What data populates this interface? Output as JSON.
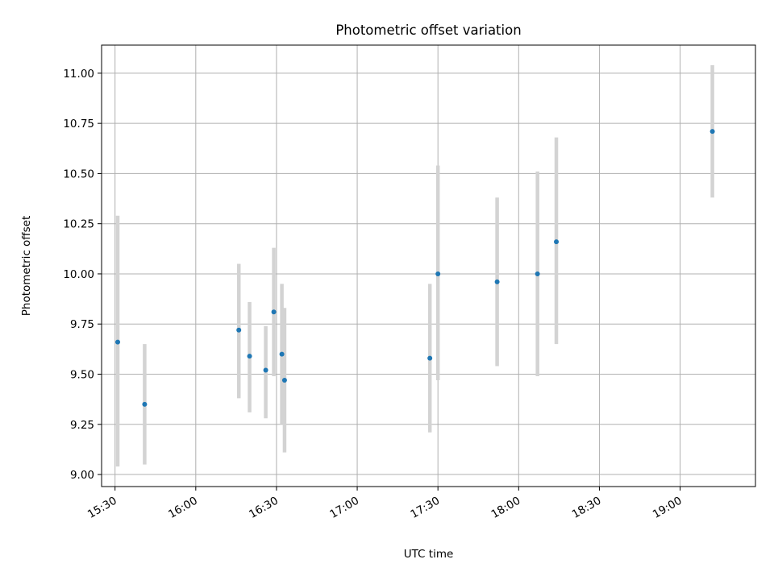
{
  "chart_data": {
    "type": "scatter",
    "title": "Photometric offset variation",
    "xlabel": "UTC time",
    "ylabel": "Photometric offset",
    "x_ticks": [
      "15:30",
      "16:00",
      "16:30",
      "17:00",
      "17:30",
      "18:00",
      "18:30",
      "19:00"
    ],
    "y_ticks": [
      "9.00",
      "9.25",
      "9.50",
      "9.75",
      "10.00",
      "10.25",
      "10.50",
      "10.75",
      "11.00"
    ],
    "xlim": [
      "15:25",
      "19:28"
    ],
    "ylim": [
      8.94,
      11.14
    ],
    "grid": true,
    "colors": {
      "point": "#1f77b4",
      "errorbar": "#d3d3d3",
      "grid": "#b0b0b0"
    },
    "points": [
      {
        "x": "15:31",
        "y": 9.66,
        "ylow": 9.04,
        "yhigh": 10.29
      },
      {
        "x": "15:41",
        "y": 9.35,
        "ylow": 9.05,
        "yhigh": 9.65
      },
      {
        "x": "16:16",
        "y": 9.72,
        "ylow": 9.38,
        "yhigh": 10.05
      },
      {
        "x": "16:20",
        "y": 9.59,
        "ylow": 9.31,
        "yhigh": 9.86
      },
      {
        "x": "16:26",
        "y": 9.52,
        "ylow": 9.28,
        "yhigh": 9.74
      },
      {
        "x": "16:29",
        "y": 9.81,
        "ylow": 9.49,
        "yhigh": 10.13
      },
      {
        "x": "16:32",
        "y": 9.6,
        "ylow": 9.25,
        "yhigh": 9.95
      },
      {
        "x": "16:33",
        "y": 9.47,
        "ylow": 9.11,
        "yhigh": 9.83
      },
      {
        "x": "17:27",
        "y": 9.58,
        "ylow": 9.21,
        "yhigh": 9.95
      },
      {
        "x": "17:30",
        "y": 10.0,
        "ylow": 9.47,
        "yhigh": 10.54
      },
      {
        "x": "17:52",
        "y": 9.96,
        "ylow": 9.54,
        "yhigh": 10.38
      },
      {
        "x": "18:07",
        "y": 10.0,
        "ylow": 9.49,
        "yhigh": 10.51
      },
      {
        "x": "18:14",
        "y": 10.16,
        "ylow": 9.65,
        "yhigh": 10.68
      },
      {
        "x": "19:12",
        "y": 10.71,
        "ylow": 10.38,
        "yhigh": 11.04
      }
    ]
  }
}
